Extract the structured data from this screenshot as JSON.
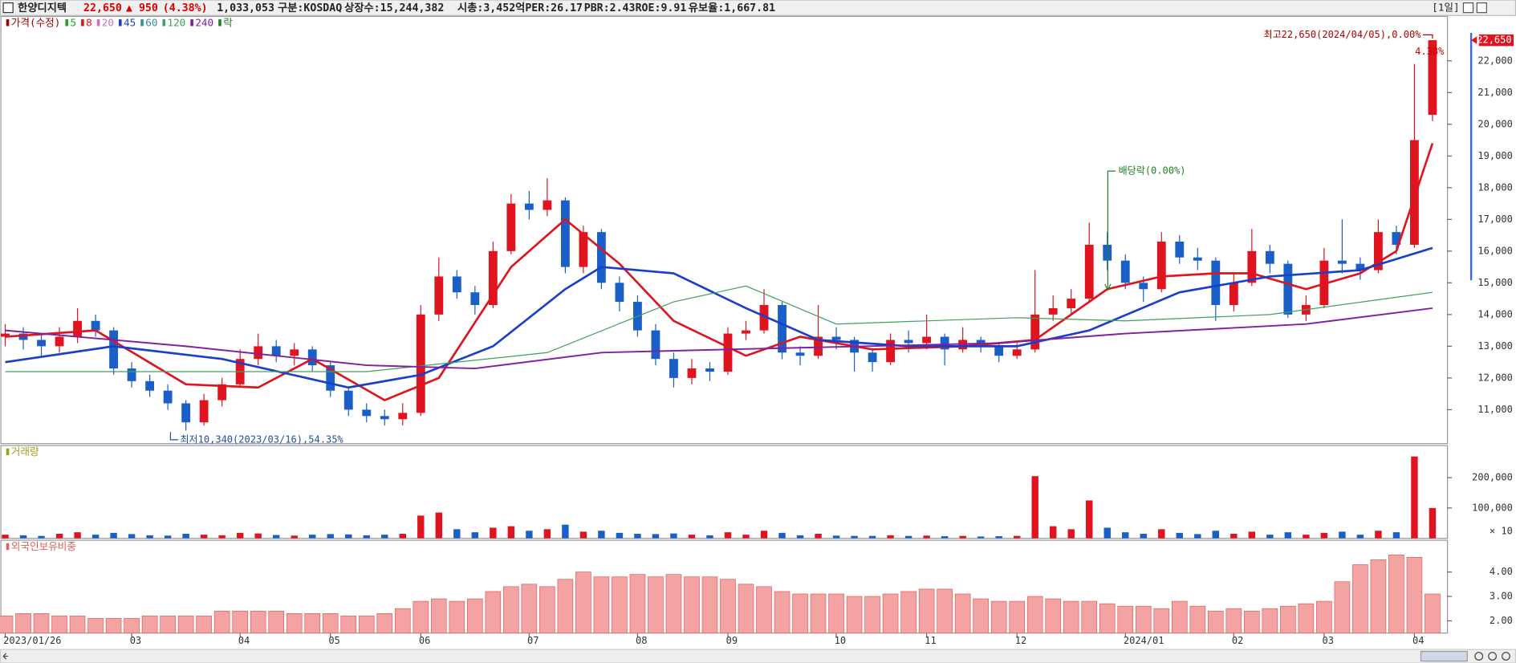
{
  "header": {
    "name": "한양디지텍",
    "price": "22,650",
    "change": "▲ 950",
    "change_pct": "(4.38%)",
    "volume": "1,033,053",
    "market": "구분:KOSDAQ",
    "shares": "상장수:15,244,382",
    "cap": "시총:3,452억",
    "per": "PER:26.17",
    "pbr": "PBR:2.43",
    "roe": "ROE:9.91",
    "reserve": "유보율:1,667.81",
    "period": "[1일]"
  },
  "chart_data": [
    {
      "type": "candlestick",
      "up_color": "#e0141e",
      "down_color": "#1a5fc8",
      "legend": [
        {
          "name": "가격(수정)",
          "color": "#a00000"
        },
        {
          "name": "5",
          "color": "#22a022"
        },
        {
          "name": "8",
          "color": "#e0141e"
        },
        {
          "name": "20",
          "color": "#d070c0"
        },
        {
          "name": "45",
          "color": "#1a3fc8"
        },
        {
          "name": "60",
          "color": "#3090a0"
        },
        {
          "name": "120",
          "color": "#40a060"
        },
        {
          "name": "240",
          "color": "#8020a0"
        },
        {
          "name": "락",
          "color": "#208020"
        }
      ],
      "categories": [
        "2023/01/26",
        null,
        null,
        null,
        null,
        null,
        null,
        "03",
        null,
        null,
        null,
        null,
        null,
        "04",
        null,
        null,
        null,
        null,
        "05",
        null,
        null,
        null,
        null,
        "06",
        null,
        null,
        null,
        null,
        null,
        "07",
        null,
        null,
        null,
        null,
        null,
        "08",
        null,
        null,
        null,
        null,
        "09",
        null,
        null,
        null,
        null,
        null,
        "10",
        null,
        null,
        null,
        null,
        "11",
        null,
        null,
        null,
        null,
        "12",
        null,
        null,
        null,
        null,
        null,
        "2024/01",
        null,
        null,
        null,
        null,
        null,
        "02",
        null,
        null,
        null,
        null,
        "03",
        null,
        null,
        null,
        null,
        "04",
        null
      ],
      "open": [
        13300,
        13400,
        13200,
        13000,
        13300,
        13800,
        13500,
        12300,
        11900,
        11600,
        11200,
        10600,
        11300,
        11800,
        12600,
        13000,
        12700,
        12900,
        12400,
        11600,
        11000,
        10800,
        10700,
        10900,
        14000,
        15200,
        14700,
        14300,
        16000,
        17500,
        17300,
        17600,
        15500,
        16600,
        15000,
        14400,
        13500,
        12600,
        12000,
        12300,
        12200,
        13400,
        13500,
        14300,
        12800,
        12700,
        13300,
        13200,
        12800,
        12500,
        13200,
        13100,
        13300,
        12900,
        13200,
        13000,
        12700,
        12900,
        14000,
        14200,
        14500,
        16200,
        15700,
        15000,
        14800,
        16300,
        15800,
        15700,
        14300,
        15000,
        16000,
        15600,
        14000,
        14300,
        15700,
        15600,
        15400,
        16600,
        16200,
        20300
      ],
      "high": [
        13700,
        13600,
        13400,
        13600,
        14200,
        14000,
        13600,
        12500,
        12100,
        11800,
        11300,
        11500,
        12000,
        12900,
        13400,
        13200,
        13100,
        13000,
        12500,
        11700,
        11200,
        11000,
        11200,
        14300,
        15800,
        15400,
        14900,
        16300,
        17800,
        17900,
        18300,
        17700,
        16800,
        16700,
        15200,
        14600,
        13700,
        12800,
        12600,
        12500,
        13600,
        13800,
        14800,
        14400,
        13000,
        14300,
        13600,
        13300,
        12900,
        13400,
        13500,
        14000,
        13400,
        13600,
        13300,
        13100,
        13100,
        15400,
        14600,
        14800,
        16900,
        16600,
        15900,
        15200,
        16600,
        16500,
        16100,
        15800,
        15300,
        16700,
        16200,
        15700,
        14600,
        16100,
        17000,
        15800,
        17000,
        16800,
        21900,
        22650
      ],
      "low": [
        13000,
        12900,
        12700,
        12800,
        13100,
        13300,
        12100,
        11700,
        11400,
        11000,
        10340,
        10500,
        11100,
        11700,
        12400,
        12500,
        12400,
        12200,
        11400,
        10800,
        10600,
        10500,
        10500,
        10800,
        13800,
        14500,
        14000,
        14200,
        15900,
        17000,
        17100,
        15300,
        15300,
        14800,
        14100,
        13300,
        12400,
        11700,
        11800,
        11900,
        12100,
        13200,
        13400,
        12600,
        12400,
        12600,
        12900,
        12200,
        12200,
        12400,
        12800,
        12900,
        12400,
        12800,
        12800,
        12500,
        12600,
        12800,
        13800,
        14000,
        14400,
        15400,
        14800,
        14400,
        14700,
        15600,
        15400,
        13800,
        14100,
        14900,
        15300,
        13900,
        13800,
        14200,
        15300,
        15100,
        15300,
        15900,
        16100,
        20100
      ],
      "close": [
        13400,
        13200,
        13000,
        13300,
        13800,
        13500,
        12300,
        11900,
        11600,
        11200,
        10600,
        11300,
        11800,
        12600,
        13000,
        12700,
        12900,
        12400,
        11600,
        11000,
        10800,
        10700,
        10900,
        14000,
        15200,
        14700,
        14300,
        16000,
        17500,
        17300,
        17600,
        15500,
        16600,
        15000,
        14400,
        13500,
        12600,
        12000,
        12300,
        12200,
        13400,
        13500,
        14300,
        12800,
        12700,
        13300,
        13200,
        12800,
        12500,
        13200,
        13100,
        13300,
        12900,
        13200,
        13000,
        12700,
        12900,
        14000,
        14200,
        14500,
        16200,
        15700,
        15000,
        14800,
        16300,
        15800,
        15700,
        14300,
        15000,
        16000,
        15600,
        14000,
        14300,
        15700,
        15600,
        15400,
        16600,
        16200,
        19500,
        22650
      ],
      "lines": [
        {
          "color": "#e0141e",
          "width": 2.2,
          "x": [
            0,
            5,
            10,
            14,
            17,
            21,
            24,
            28,
            31,
            34,
            37,
            41,
            44,
            48,
            53,
            57,
            61,
            64,
            67,
            69,
            72,
            75,
            77,
            79
          ],
          "values": [
            13300,
            13500,
            11800,
            11700,
            12600,
            11300,
            12000,
            15500,
            17000,
            15600,
            13800,
            12700,
            13300,
            12900,
            13000,
            13200,
            14800,
            15200,
            15300,
            15300,
            14800,
            15300,
            16000,
            19400
          ]
        },
        {
          "color": "#1a3fc8",
          "width": 2.2,
          "x": [
            0,
            6,
            12,
            19,
            23,
            27,
            31,
            33,
            37,
            41,
            45,
            50,
            56,
            60,
            65,
            70,
            75,
            79
          ],
          "values": [
            12500,
            13000,
            12600,
            11700,
            12100,
            13000,
            14800,
            15500,
            15300,
            14200,
            13200,
            13000,
            13000,
            13500,
            14700,
            15200,
            15400,
            16100
          ]
        },
        {
          "color": "#40a060",
          "width": 1,
          "x": [
            0,
            10,
            20,
            30,
            37,
            41,
            46,
            56,
            62,
            70,
            79
          ],
          "values": [
            12200,
            12200,
            12200,
            12800,
            14400,
            14900,
            13700,
            13900,
            13800,
            14000,
            14700
          ]
        },
        {
          "color": "#8020a0",
          "width": 1.6,
          "x": [
            0,
            10,
            20,
            26,
            33,
            40,
            55,
            62,
            72,
            79
          ],
          "values": [
            13500,
            13000,
            12400,
            12300,
            12800,
            12900,
            13100,
            13400,
            13700,
            14200
          ]
        }
      ],
      "ylim": [
        9930,
        23400
      ],
      "yticks": [
        {
          "value": 11000,
          "label": "11,000"
        },
        {
          "value": 12000,
          "label": "12,000"
        },
        {
          "value": 13000,
          "label": "13,000"
        },
        {
          "value": 14000,
          "label": "14,000"
        },
        {
          "value": 15000,
          "label": "15,000"
        },
        {
          "value": 16000,
          "label": "16,000"
        },
        {
          "value": 17000,
          "label": "17,000"
        },
        {
          "value": 18000,
          "label": "18,000"
        },
        {
          "value": 19000,
          "label": "19,000"
        },
        {
          "value": 20000,
          "label": "20,000"
        },
        {
          "value": 21000,
          "label": "21,000"
        },
        {
          "value": 22000,
          "label": "22,000"
        }
      ],
      "last_price_label": "22,650",
      "last_change_label": "4.38%",
      "annotations": [
        "최고22,650(2024/04/05),0.00%",
        "최저10,340(2023/03/16),54.35%",
        "배당락(0.00%)"
      ]
    },
    {
      "type": "bar",
      "title": "거래량",
      "unit": "× 10",
      "values": [
        12000,
        10000,
        8000,
        15000,
        20000,
        12000,
        18000,
        14000,
        10000,
        9000,
        15000,
        12000,
        10000,
        18000,
        16000,
        11000,
        9000,
        12000,
        14000,
        13000,
        10000,
        12000,
        15000,
        75000,
        85000,
        30000,
        20000,
        35000,
        40000,
        25000,
        30000,
        45000,
        22000,
        25000,
        18000,
        15000,
        14000,
        16000,
        12000,
        10000,
        20000,
        12000,
        25000,
        18000,
        10000,
        15000,
        9000,
        8000,
        8000,
        10000,
        8000,
        9000,
        7000,
        8000,
        6000,
        7000,
        8000,
        205000,
        40000,
        30000,
        125000,
        35000,
        20000,
        15000,
        30000,
        18000,
        14000,
        25000,
        15000,
        22000,
        12000,
        20000,
        12000,
        18000,
        22000,
        12000,
        25000,
        20000,
        270000,
        100000
      ],
      "ylim": [
        0,
        306000
      ],
      "yticks": [
        {
          "value": 100000,
          "label": "100,000"
        },
        {
          "value": 200000,
          "label": "200,000"
        }
      ]
    },
    {
      "type": "bar",
      "title": "외국인보유비중",
      "color": "#f4a3a3",
      "values": [
        2.2,
        2.3,
        2.3,
        2.2,
        2.2,
        2.1,
        2.1,
        2.1,
        2.2,
        2.2,
        2.2,
        2.2,
        2.4,
        2.4,
        2.4,
        2.4,
        2.3,
        2.3,
        2.3,
        2.2,
        2.2,
        2.3,
        2.5,
        2.8,
        2.9,
        2.8,
        2.9,
        3.2,
        3.4,
        3.5,
        3.4,
        3.7,
        4.0,
        3.8,
        3.8,
        3.9,
        3.8,
        3.9,
        3.8,
        3.8,
        3.7,
        3.5,
        3.4,
        3.2,
        3.1,
        3.1,
        3.1,
        3.0,
        3.0,
        3.1,
        3.2,
        3.3,
        3.3,
        3.1,
        2.9,
        2.8,
        2.8,
        3.0,
        2.9,
        2.8,
        2.8,
        2.7,
        2.6,
        2.6,
        2.5,
        2.8,
        2.6,
        2.4,
        2.5,
        2.4,
        2.5,
        2.6,
        2.7,
        2.8,
        3.6,
        4.3,
        4.5,
        4.7,
        4.6,
        3.1
      ],
      "ylim": [
        1.5,
        5.3
      ],
      "yticks": [
        {
          "value": 2,
          "label": "2.00"
        },
        {
          "value": 3,
          "label": "3.00"
        },
        {
          "value": 4,
          "label": "4.00"
        }
      ]
    }
  ]
}
